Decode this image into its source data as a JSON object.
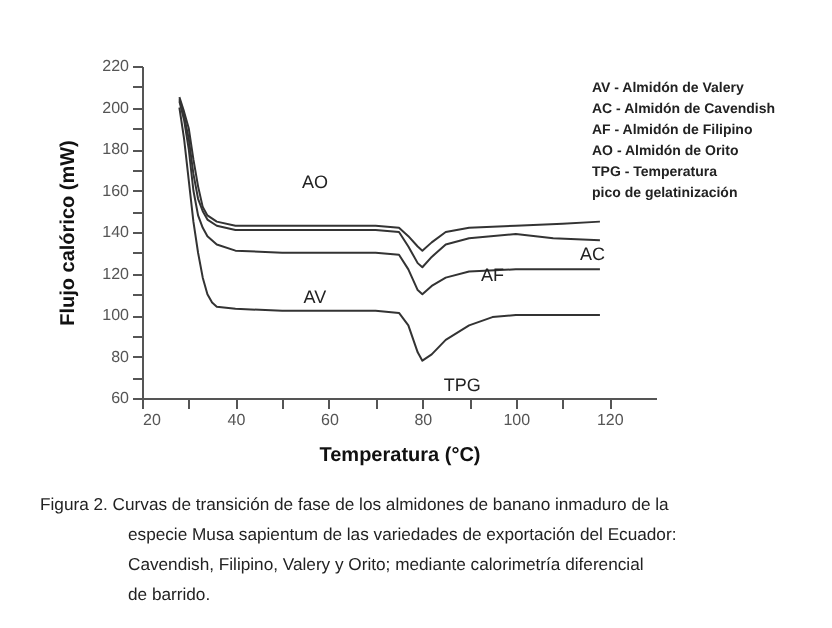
{
  "chart_data": {
    "type": "line",
    "xlabel": "Temperatura (°C)",
    "ylabel": "Flujo calórico (mW)",
    "xlim": [
      20,
      130
    ],
    "ylim": [
      60,
      220
    ],
    "xticks": [
      20,
      {
        "value": 30,
        "label": null
      },
      40,
      {
        "value": 50,
        "label": null
      },
      60,
      {
        "value": 70,
        "label": null
      },
      80,
      {
        "value": 90,
        "label": null
      },
      100,
      {
        "value": 110,
        "label": null
      },
      120
    ],
    "yticks": [
      60,
      {
        "value": 70,
        "label": null
      },
      80,
      {
        "value": 90,
        "label": null
      },
      100,
      {
        "value": 110,
        "label": null
      },
      120,
      {
        "value": 130,
        "label": null
      },
      140,
      {
        "value": 150,
        "label": null
      },
      160,
      {
        "value": 170,
        "label": null
      },
      180,
      {
        "value": 190,
        "label": null
      },
      200,
      {
        "value": 210,
        "label": null
      },
      220
    ],
    "grid": false,
    "series": [
      {
        "color": "#333333",
        "x": [
          28,
          29,
          30,
          31,
          32,
          33,
          34,
          36,
          40,
          50,
          60,
          70,
          75,
          77,
          79,
          80,
          82,
          85,
          90,
          100,
          110,
          118
        ],
        "values": [
          205,
          198,
          190,
          175,
          162,
          152,
          148,
          145,
          143,
          143,
          143,
          143,
          142,
          138,
          133,
          131,
          135,
          140,
          142,
          143,
          144,
          145
        ]
      },
      {
        "color": "#333333",
        "x": [
          28,
          29,
          30,
          31,
          32,
          33,
          34,
          36,
          40,
          50,
          60,
          70,
          75,
          77,
          79,
          80,
          82,
          85,
          90,
          100,
          108,
          118
        ],
        "values": [
          204,
          196,
          185,
          168,
          156,
          150,
          146,
          143,
          141,
          141,
          141,
          141,
          140,
          133,
          125,
          123,
          128,
          134,
          137,
          139,
          137,
          136
        ]
      },
      {
        "color": "#333333",
        "x": [
          28,
          29,
          30,
          31,
          32,
          33,
          34,
          36,
          40,
          50,
          60,
          70,
          75,
          77,
          79,
          80,
          82,
          85,
          90,
          100,
          110,
          118
        ],
        "values": [
          203,
          194,
          180,
          160,
          148,
          142,
          138,
          134,
          131,
          130,
          130,
          130,
          129,
          122,
          112,
          110,
          114,
          118,
          121,
          122,
          122,
          122
        ]
      },
      {
        "color": "#333333",
        "x": [
          28,
          29,
          30,
          31,
          32,
          33,
          34,
          35,
          36,
          40,
          50,
          60,
          70,
          75,
          77,
          79,
          80,
          82,
          85,
          90,
          95,
          100,
          110,
          118
        ],
        "values": [
          200,
          185,
          165,
          145,
          130,
          118,
          110,
          106,
          104,
          103,
          102,
          102,
          102,
          101,
          95,
          82,
          78,
          81,
          88,
          95,
          99,
          100,
          100,
          100
        ]
      }
    ],
    "annotations": [
      {
        "text": "AO",
        "x": 57,
        "y": 143
      },
      {
        "text": "AV",
        "x": 57,
        "y": 130
      },
      {
        "text": "AC",
        "x": 107,
        "y": 137
      },
      {
        "text": "AF",
        "x": 95,
        "y": 100
      },
      {
        "text": "TPG",
        "x": 80,
        "y": 78
      },
      "AV - Almidón de Valery",
      "AC - Almidón de Cavendish",
      "AF - Almidón de Filipino",
      "AO - Almidón de Orito",
      "TPG - Temperatura",
      "pico de gelatinización",
      "Figura 2. Curvas de transición de fase de los almidones de banano inmaduro de la especie Musa sapientum de las variedades de exportación del Ecuador: Cavendish, Filipino, Valery y Orito; mediante calorimetría diferencial de barrido."
    ]
  }
}
